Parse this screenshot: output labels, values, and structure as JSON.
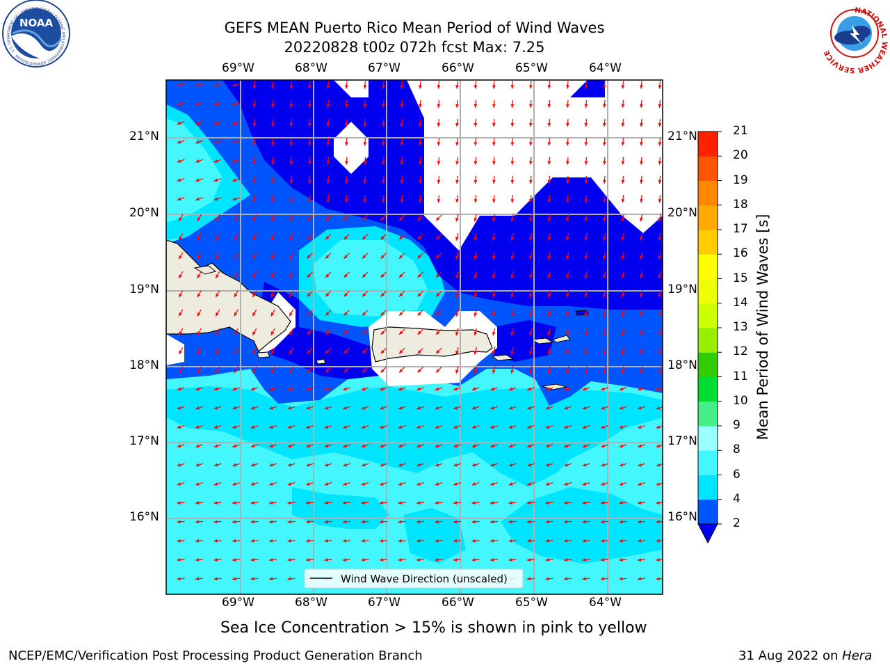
{
  "title_line1": "GEFS MEAN Puerto Rico Mean Period of Wind Waves",
  "title_line2": "20220828 t00z 072h fcst   Max: 7.25",
  "lon_labels": [
    "69°W",
    "68°W",
    "67°W",
    "66°W",
    "65°W",
    "64°W"
  ],
  "lat_labels": [
    "21°N",
    "20°N",
    "19°N",
    "18°N",
    "17°N",
    "16°N"
  ],
  "colorbar": {
    "label": "Mean Period of Wind Waves [s]",
    "ticks": [
      "2",
      "4",
      "6",
      "8",
      "9",
      "10",
      "11",
      "12",
      "13",
      "14",
      "15",
      "16",
      "17",
      "18",
      "19",
      "20",
      "21"
    ],
    "colors": [
      "#0055ff",
      "#00e5ff",
      "#44f7ff",
      "#99ffff",
      "#44ee88",
      "#00dd33",
      "#33cc00",
      "#99ee00",
      "#ccff00",
      "#eeff00",
      "#ffff00",
      "#ffcc00",
      "#ffaa00",
      "#ff8800",
      "#ff5500",
      "#ff2200"
    ],
    "under_color": "#0000ee"
  },
  "legend_text": "Wind Wave Direction (unscaled)",
  "sea_ice_note": "Sea Ice Concentration > 15% is shown in pink to yellow",
  "footer_left": "NCEP/EMC/Verification Post Processing Product Generation Branch",
  "footer_date": "31 Aug 2022 on ",
  "footer_machine": "Hera",
  "logos": {
    "noaa_text": "NOAA",
    "noaa_ring": "NATIONAL OCEANIC AND ATMOSPHERIC ADMINISTRATION · U.S. DEPARTMENT OF COMMERCE",
    "nws_ring": "NATIONAL WEATHER SERVICE"
  },
  "colors": {
    "land": "#eeecdf",
    "lt2": "#0000ee",
    "c2_4": "#0055ff",
    "c4_6": "#00e5ff",
    "c6_8": "#44f7ff",
    "arrow": "#ff0000"
  }
}
